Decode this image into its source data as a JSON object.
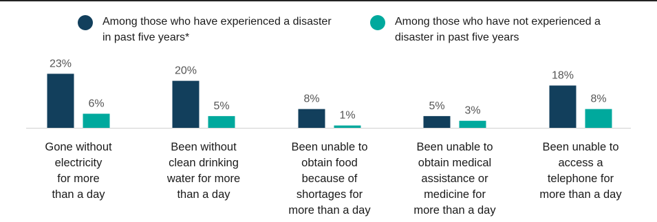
{
  "chart_data": {
    "type": "bar",
    "title": "",
    "xlabel": "",
    "ylabel": "",
    "ylim": [
      0,
      25
    ],
    "grid": false,
    "legend_position": "top",
    "categories": [
      "Gone without\nelectricity\nfor more\nthan a day",
      "Been without\nclean drinking\nwater for more\nthan a day",
      "Been unable to\nobtain food\nbecause of\nshortages for\nmore than a day",
      "Been unable to\nobtain medical\nassistance or\nmedicine for\nmore than a day",
      "Been unable to\naccess a\ntelephone for\nmore than a day"
    ],
    "series": [
      {
        "name": "Among those who have experienced a disaster in past five years*",
        "color": "#123f5c",
        "values": [
          23,
          20,
          8,
          5,
          18
        ],
        "labels": [
          "23%",
          "20%",
          "8%",
          "5%",
          "18%"
        ]
      },
      {
        "name": "Among those who have not experienced a disaster in past five years",
        "color": "#00a99d",
        "values": [
          6,
          5,
          1,
          3,
          8
        ],
        "labels": [
          "6%",
          "5%",
          "1%",
          "3%",
          "8%"
        ]
      }
    ]
  }
}
